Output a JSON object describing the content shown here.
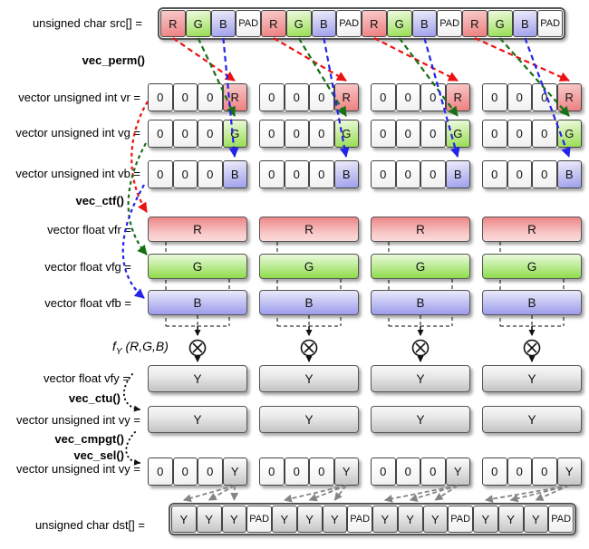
{
  "labels": {
    "src": "unsigned char src[] =",
    "vec_perm": "vec_perm()",
    "vr": "vector unsigned int vr =",
    "vg": "vector unsigned int vg =",
    "vb": "vector unsigned int vb =",
    "vec_ctf": "vec_ctf()",
    "vfr": "vector float vfr =",
    "vfg": "vector float vfg =",
    "vfb": "vector float vfb =",
    "fy_f": "f",
    "fy_sub": "Y",
    "fy_args": "(R,G,B)",
    "vfy": "vector float vfy =",
    "vec_ctu": "vec_ctu()",
    "vy": "vector unsigned int vy =",
    "vec_cmpgt": "vec_cmpgt()",
    "vec_sel": "vec_sel()",
    "vy2": "vector unsigned int vy =",
    "dst": "unsigned char dst[] ="
  },
  "src_row": [
    "R",
    "G",
    "B",
    "PAD",
    "R",
    "G",
    "B",
    "PAD",
    "R",
    "G",
    "B",
    "PAD",
    "R",
    "G",
    "B",
    "PAD"
  ],
  "vr_groups": [
    [
      "0",
      "0",
      "0",
      "R"
    ],
    [
      "0",
      "0",
      "0",
      "R"
    ],
    [
      "0",
      "0",
      "0",
      "R"
    ],
    [
      "0",
      "0",
      "0",
      "R"
    ]
  ],
  "vg_groups": [
    [
      "0",
      "0",
      "0",
      "G"
    ],
    [
      "0",
      "0",
      "0",
      "G"
    ],
    [
      "0",
      "0",
      "0",
      "G"
    ],
    [
      "0",
      "0",
      "0",
      "G"
    ]
  ],
  "vb_groups": [
    [
      "0",
      "0",
      "0",
      "B"
    ],
    [
      "0",
      "0",
      "0",
      "B"
    ],
    [
      "0",
      "0",
      "0",
      "B"
    ],
    [
      "0",
      "0",
      "0",
      "B"
    ]
  ],
  "vfr_bars": [
    "R",
    "R",
    "R",
    "R"
  ],
  "vfg_bars": [
    "G",
    "G",
    "G",
    "G"
  ],
  "vfb_bars": [
    "B",
    "B",
    "B",
    "B"
  ],
  "operators": {
    "icon": "circled-times",
    "symbol": "⊗",
    "count": 4
  },
  "vfy_bars": [
    "Y",
    "Y",
    "Y",
    "Y"
  ],
  "vy_bars": [
    "Y",
    "Y",
    "Y",
    "Y"
  ],
  "vy2_groups": [
    [
      "0",
      "0",
      "0",
      "Y"
    ],
    [
      "0",
      "0",
      "0",
      "Y"
    ],
    [
      "0",
      "0",
      "0",
      "Y"
    ],
    [
      "0",
      "0",
      "0",
      "Y"
    ]
  ],
  "dst_row": [
    "Y",
    "Y",
    "Y",
    "PAD",
    "Y",
    "Y",
    "Y",
    "PAD",
    "Y",
    "Y",
    "Y",
    "PAD",
    "Y",
    "Y",
    "Y",
    "PAD"
  ],
  "palette": {
    "red_cell": "#ed7e7e",
    "green_cell": "#96dd50",
    "blue_cell": "#9e9eec",
    "gray_cell": "#c6c6c6",
    "arrow_red": "#ee1111",
    "arrow_green": "#167016",
    "arrow_blue": "#2424e8",
    "arrow_gray": "#858585",
    "arrow_black": "#111111"
  }
}
